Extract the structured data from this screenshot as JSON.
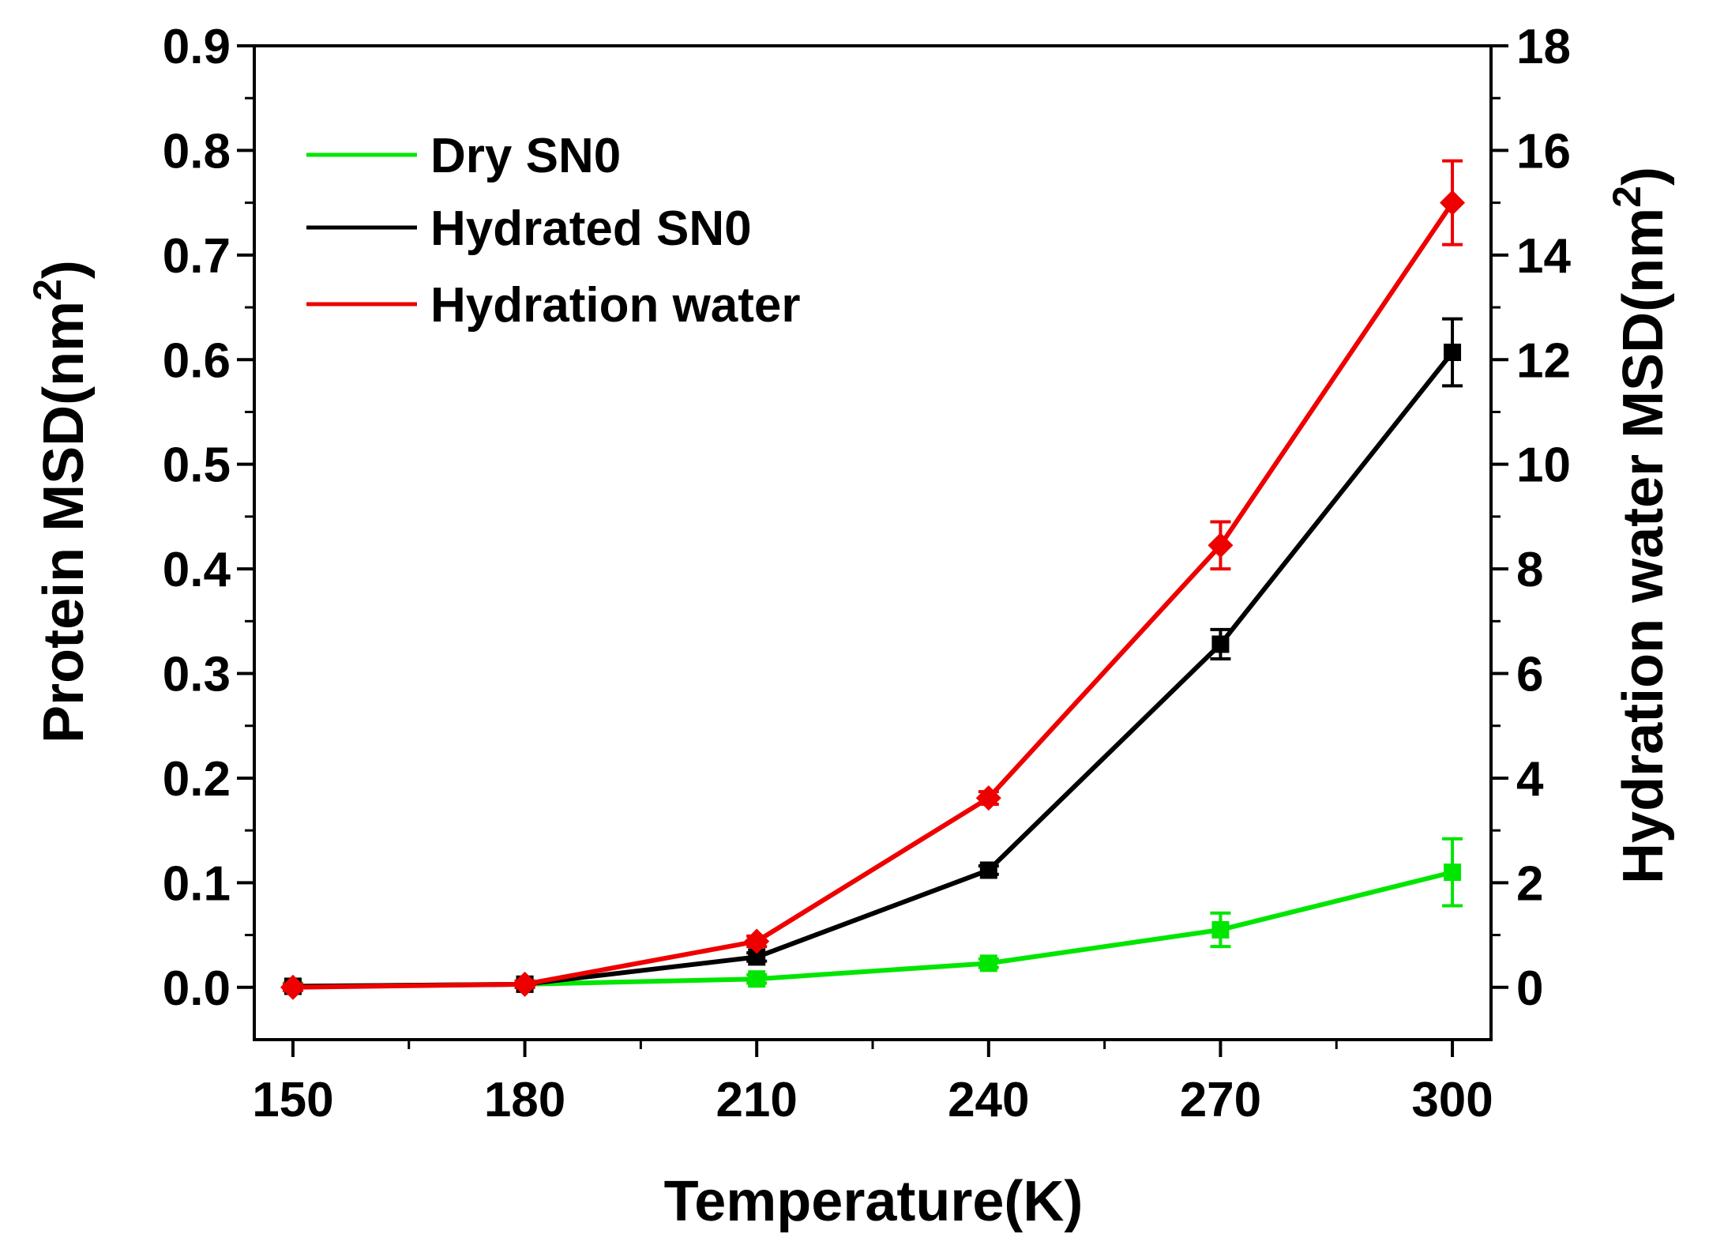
{
  "chart_data": {
    "type": "line",
    "xlabel": "Temperature(K)",
    "ylabel_left": "Protein MSD(nm",
    "ylabel_right": "Hydration water MSD(nm",
    "ylabel_sup": "2",
    "ylabel_close": ")",
    "xlim": [
      145,
      305
    ],
    "ylim_left": [
      -0.05,
      0.9
    ],
    "ylim_right": [
      -1,
      18
    ],
    "x_ticks": [
      150,
      180,
      210,
      240,
      270,
      300
    ],
    "x_tick_labels": [
      "150",
      "180",
      "210",
      "240",
      "270",
      "300"
    ],
    "y_left_ticks": [
      0.0,
      0.1,
      0.2,
      0.3,
      0.4,
      0.5,
      0.6,
      0.7,
      0.8,
      0.9
    ],
    "y_left_tick_labels": [
      "0.0",
      "0.1",
      "0.2",
      "0.3",
      "0.4",
      "0.5",
      "0.6",
      "0.7",
      "0.8",
      "0.9"
    ],
    "y_right_ticks": [
      0,
      2,
      4,
      6,
      8,
      10,
      12,
      14,
      16,
      18
    ],
    "y_right_tick_labels": [
      "0",
      "2",
      "4",
      "6",
      "8",
      "10",
      "12",
      "14",
      "16",
      "18"
    ],
    "grid": false,
    "legend_position": "top-left",
    "series": [
      {
        "name": "Dry SN0",
        "color": "#00e600",
        "marker": "square",
        "axis": "left",
        "x": [
          150,
          180,
          210,
          240,
          270,
          300
        ],
        "y": [
          0.001,
          0.003,
          0.008,
          0.023,
          0.055,
          0.11
        ],
        "err": [
          0.003,
          0.003,
          0.004,
          0.004,
          0.016,
          0.032
        ]
      },
      {
        "name": "Hydrated SN0",
        "color": "#000000",
        "marker": "square",
        "axis": "left",
        "x": [
          150,
          180,
          210,
          240,
          270,
          300
        ],
        "y": [
          0.001,
          0.003,
          0.029,
          0.112,
          0.328,
          0.607
        ],
        "err": [
          0.002,
          0.003,
          0.004,
          0.004,
          0.014,
          0.032
        ]
      },
      {
        "name": "Hydration water",
        "color": "#ee0000",
        "marker": "diamond",
        "axis": "right",
        "x": [
          150,
          180,
          210,
          240,
          270,
          300
        ],
        "y": [
          0.0,
          0.06,
          0.88,
          3.62,
          8.45,
          15.0
        ],
        "err": [
          0.06,
          0.06,
          0.1,
          0.12,
          0.45,
          0.8
        ]
      }
    ]
  }
}
